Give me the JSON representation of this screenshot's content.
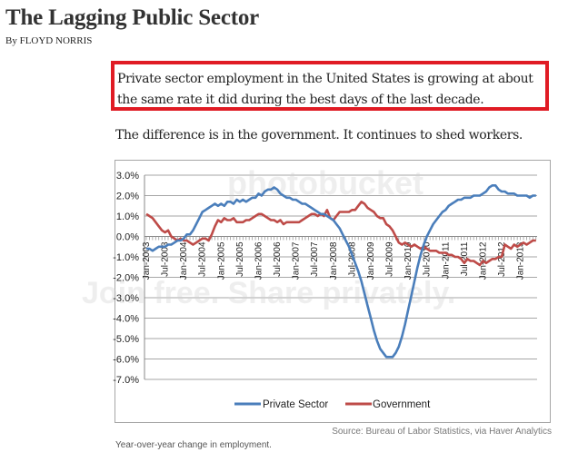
{
  "article": {
    "headline": "The Lagging Public Sector",
    "byline": "By FLOYD NORRIS",
    "callout_line1": "Private sector employment in the United States is growing at about",
    "callout_line2": "the same rate it did during the best days of the last decade.",
    "lead": "The difference is in the government. It continues to shed workers.",
    "source": "Source: Bureau of Labor Statistics, via Haver Analytics",
    "caption": "Year-over-year change in employment."
  },
  "watermark": {
    "brand": "photobucket",
    "tagline": "Join free. Share privately."
  },
  "colors": {
    "callout_border": "#e01b24",
    "private_sector": "#4a7ebb",
    "government": "#be4b48",
    "gridline": "#a6a6a6"
  },
  "chart_data": {
    "type": "line",
    "title": "",
    "xlabel": "",
    "ylabel": "",
    "ylim": [
      -7.0,
      3.0
    ],
    "y_ticks": [
      "3.0%",
      "2.0%",
      "1.0%",
      "0.0%",
      "-1.0%",
      "-2.0%",
      "-3.0%",
      "-4.0%",
      "-5.0%",
      "-6.0%",
      "-7.0%"
    ],
    "y_tick_values": [
      3,
      2,
      1,
      0,
      -1,
      -2,
      -3,
      -4,
      -5,
      -6,
      -7
    ],
    "x_tick_labels": [
      "Jan-2003",
      "Jul-2003",
      "Jan-2004",
      "Jul-2004",
      "Jan-2005",
      "Jul-2005",
      "Jan-2006",
      "Jul-2006",
      "Jan-2007",
      "Jul-2007",
      "Jan-2008",
      "Jul-2008",
      "Jan-2009",
      "Jul-2009",
      "Jan-2010",
      "Jul-2010",
      "Jan-2011",
      "Jul-2011",
      "Jan-2012",
      "Jul-2012",
      "Jan-2013"
    ],
    "x_start": "Jan-2003",
    "x_frequency": "monthly",
    "grid": true,
    "legend_position": "bottom",
    "series": [
      {
        "name": "Private Sector",
        "color": "#4a7ebb",
        "values": [
          -0.6,
          -0.6,
          -0.7,
          -0.6,
          -0.5,
          -0.5,
          -0.5,
          -0.4,
          -0.4,
          -0.3,
          -0.2,
          -0.2,
          -0.1,
          0.1,
          0.1,
          0.3,
          0.6,
          0.9,
          1.2,
          1.3,
          1.4,
          1.5,
          1.6,
          1.5,
          1.6,
          1.5,
          1.7,
          1.7,
          1.6,
          1.8,
          1.7,
          1.8,
          1.7,
          1.8,
          1.9,
          1.9,
          2.1,
          2.0,
          2.2,
          2.3,
          2.3,
          2.4,
          2.3,
          2.1,
          2.0,
          1.9,
          1.9,
          1.8,
          1.8,
          1.7,
          1.6,
          1.6,
          1.5,
          1.4,
          1.3,
          1.2,
          1.1,
          1.1,
          1.0,
          0.9,
          0.8,
          0.6,
          0.4,
          0.1,
          -0.2,
          -0.5,
          -0.9,
          -1.3,
          -1.7,
          -2.2,
          -2.8,
          -3.4,
          -4.0,
          -4.6,
          -5.1,
          -5.5,
          -5.7,
          -5.9,
          -5.9,
          -5.9,
          -5.7,
          -5.4,
          -4.9,
          -4.3,
          -3.6,
          -2.9,
          -2.2,
          -1.5,
          -0.9,
          -0.4,
          0.0,
          0.3,
          0.6,
          0.8,
          1.0,
          1.2,
          1.3,
          1.5,
          1.6,
          1.7,
          1.8,
          1.8,
          1.9,
          1.9,
          1.9,
          2.0,
          2.0,
          2.0,
          2.1,
          2.2,
          2.4,
          2.5,
          2.5,
          2.3,
          2.2,
          2.2,
          2.1,
          2.1,
          2.1,
          2.0,
          2.0,
          2.0,
          2.0,
          1.9,
          2.0,
          2.0
        ]
      },
      {
        "name": "Government",
        "color": "#be4b48",
        "values": [
          1.1,
          1.0,
          0.9,
          0.7,
          0.5,
          0.3,
          0.2,
          0.3,
          0.0,
          -0.1,
          -0.2,
          -0.1,
          -0.2,
          -0.2,
          -0.3,
          -0.4,
          -0.3,
          -0.2,
          -0.1,
          -0.1,
          -0.2,
          0.1,
          0.5,
          0.8,
          0.7,
          0.9,
          0.8,
          0.8,
          0.9,
          0.7,
          0.7,
          0.7,
          0.8,
          0.8,
          0.9,
          1.0,
          1.1,
          1.1,
          1.0,
          0.9,
          0.8,
          0.8,
          0.7,
          0.8,
          0.6,
          0.7,
          0.7,
          0.7,
          0.7,
          0.7,
          0.8,
          0.9,
          1.0,
          1.1,
          1.1,
          1.0,
          1.1,
          1.0,
          1.3,
          0.9,
          0.8,
          1.0,
          1.2,
          1.2,
          1.2,
          1.2,
          1.3,
          1.3,
          1.5,
          1.7,
          1.6,
          1.4,
          1.3,
          1.2,
          1.0,
          0.9,
          0.9,
          0.6,
          0.5,
          0.3,
          0.0,
          -0.3,
          -0.4,
          -0.3,
          -0.4,
          -0.5,
          -0.4,
          -0.5,
          -0.6,
          -0.5,
          -0.6,
          -0.7,
          -0.7,
          -0.7,
          -0.8,
          -0.8,
          -0.8,
          -0.9,
          -0.9,
          -1.0,
          -1.0,
          -1.1,
          -1.3,
          -1.1,
          -1.2,
          -1.2,
          -1.3,
          -1.4,
          -1.2,
          -1.3,
          -1.2,
          -1.1,
          -1.1,
          -1.0,
          -1.0,
          -0.4,
          -0.5,
          -0.6,
          -0.4,
          -0.5,
          -0.4,
          -0.3,
          -0.4,
          -0.3,
          -0.2,
          -0.2
        ]
      }
    ]
  }
}
